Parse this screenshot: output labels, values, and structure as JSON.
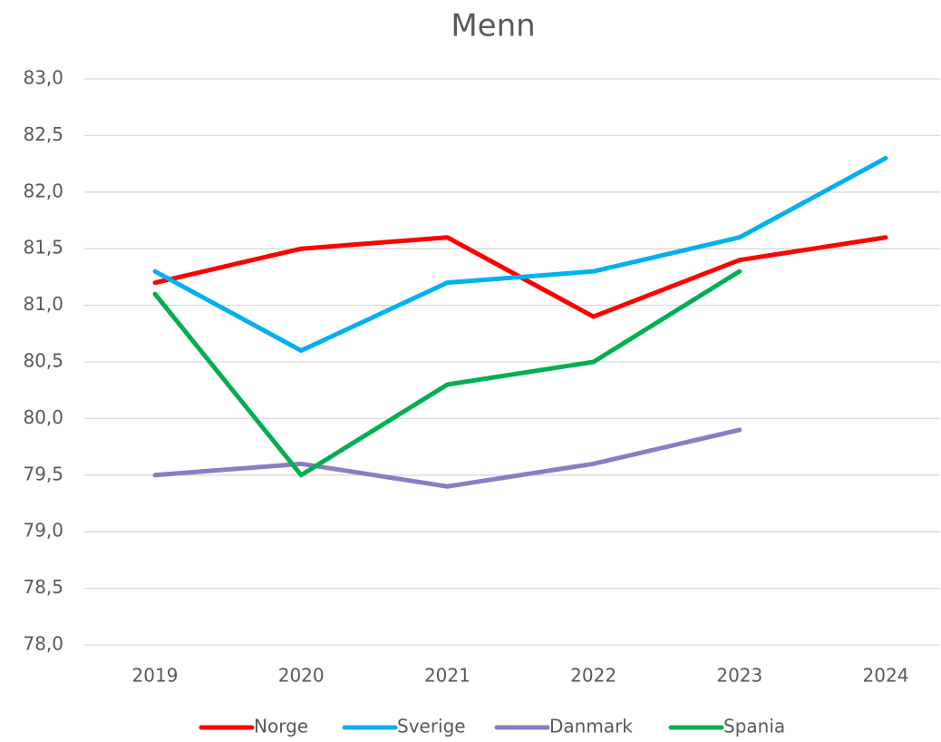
{
  "chart_data": {
    "type": "line",
    "title": "Menn",
    "categories": [
      "2019",
      "2020",
      "2021",
      "2022",
      "2023",
      "2024"
    ],
    "series": [
      {
        "name": "Norge",
        "color": "#ff0000",
        "values": [
          81.2,
          81.5,
          81.6,
          80.9,
          81.4,
          81.6
        ]
      },
      {
        "name": "Sverige",
        "color": "#00b0f0",
        "values": [
          81.3,
          80.6,
          81.2,
          81.3,
          81.6,
          82.3
        ]
      },
      {
        "name": "Danmark",
        "color": "#8e7cc3",
        "values": [
          79.5,
          79.6,
          79.4,
          79.6,
          79.9,
          null
        ]
      },
      {
        "name": "Spania",
        "color": "#00b050",
        "values": [
          81.1,
          79.5,
          80.3,
          80.5,
          81.3,
          null
        ]
      }
    ],
    "ylim": [
      78,
      83
    ],
    "yticks": [
      {
        "value": 78,
        "label": "78,0"
      },
      {
        "value": 78.5,
        "label": "78,5"
      },
      {
        "value": 79,
        "label": "79,0"
      },
      {
        "value": 79.5,
        "label": "79,5"
      },
      {
        "value": 80,
        "label": "80,0"
      },
      {
        "value": 80.5,
        "label": "80,5"
      },
      {
        "value": 81,
        "label": "81,0"
      },
      {
        "value": 81.5,
        "label": "81,5"
      },
      {
        "value": 82,
        "label": "82,0"
      },
      {
        "value": 82.5,
        "label": "82,5"
      },
      {
        "value": 83,
        "label": "83,0"
      }
    ],
    "grid": true,
    "legend": "bottom"
  }
}
